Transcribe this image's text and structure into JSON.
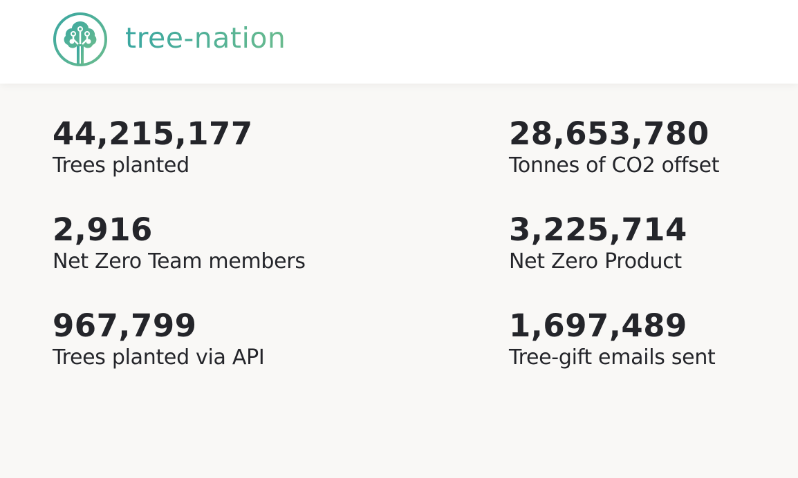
{
  "brand": {
    "name": "tree-nation",
    "colors": {
      "primary": "#4fae9e",
      "gradient_start": "#3aa7a1",
      "gradient_end": "#69bb8e"
    },
    "icon": "tree-circuit-logo-icon"
  },
  "stats": [
    {
      "value": "44,215,177",
      "label": "Trees planted"
    },
    {
      "value": "28,653,780",
      "label": "Tonnes of CO2 offset"
    },
    {
      "value": "2,916",
      "label": "Net Zero Team members"
    },
    {
      "value": "3,225,714",
      "label": "Net Zero Product"
    },
    {
      "value": "967,799",
      "label": "Trees planted via API"
    },
    {
      "value": "1,697,489",
      "label": "Tree-gift emails sent"
    }
  ]
}
